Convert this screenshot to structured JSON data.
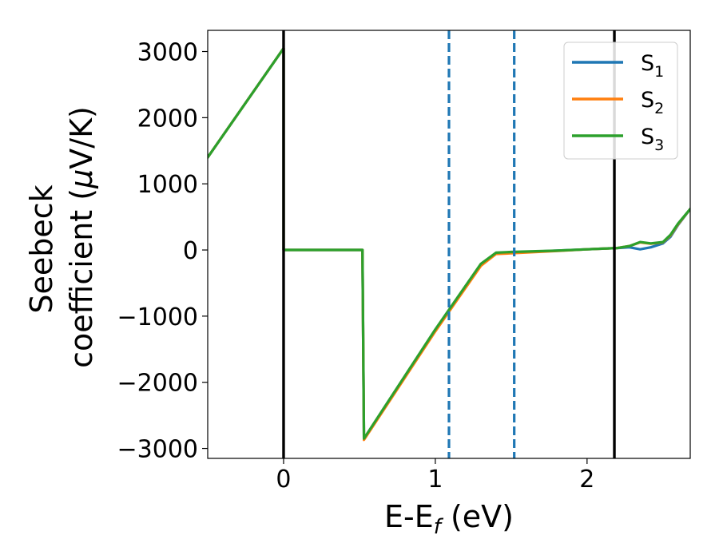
{
  "chart_data": {
    "type": "line",
    "title": "",
    "xlabel": "E-E",
    "xlabel_sub": "f",
    "xlabel_unit": " (eV)",
    "ylabel_line1": "Seebeck",
    "ylabel_line2": "coefficient  (",
    "ylabel_mu": "μ",
    "ylabel_unit": "V/K)",
    "xlim": [
      -0.5,
      2.68
    ],
    "ylim": [
      -3150,
      3320
    ],
    "xticks": [
      0,
      1,
      2
    ],
    "xtick_labels": [
      "0",
      "1",
      "2"
    ],
    "yticks": [
      3000,
      2000,
      1000,
      0,
      -1000,
      -2000,
      -3000
    ],
    "ytick_labels": [
      "3000",
      "2000",
      "1000",
      "0",
      "−1000",
      "−2000",
      "−3000"
    ],
    "grid": false,
    "legend_position": "top-right",
    "legend": [
      {
        "base": "S",
        "sub": "1",
        "color": "#1f77b4"
      },
      {
        "base": "S",
        "sub": "2",
        "color": "#ff7f0e"
      },
      {
        "base": "S",
        "sub": "3",
        "color": "#2ca02c"
      }
    ],
    "vlines": [
      {
        "x": 0.0,
        "style": "solid",
        "color": "#000000"
      },
      {
        "x": 2.18,
        "style": "solid",
        "color": "#000000"
      },
      {
        "x": 1.09,
        "style": "dashed",
        "color": "#1f77b4"
      },
      {
        "x": 1.52,
        "style": "dashed",
        "color": "#1f77b4"
      }
    ],
    "series": [
      {
        "name": "S1",
        "color": "#1f77b4",
        "x": [
          -0.5,
          0.0,
          0.0,
          0.52,
          0.53,
          1.0,
          1.3,
          1.4,
          1.5,
          1.8,
          2.0,
          2.2,
          2.28,
          2.35,
          2.42,
          2.5,
          2.55,
          2.6,
          2.68
        ],
        "y": [
          1400,
          3050,
          0,
          0,
          -2860,
          -1220,
          -230,
          -50,
          -40,
          -10,
          10,
          30,
          40,
          10,
          40,
          100,
          200,
          380,
          620
        ]
      },
      {
        "name": "S2",
        "color": "#ff7f0e",
        "x": [
          -0.5,
          0.0,
          0.0,
          0.52,
          0.53,
          1.0,
          1.3,
          1.4,
          1.5,
          1.8,
          2.0,
          2.2,
          2.28,
          2.35,
          2.42,
          2.5,
          2.55,
          2.6,
          2.68
        ],
        "y": [
          1400,
          3050,
          0,
          0,
          -2870,
          -1230,
          -240,
          -60,
          -50,
          -15,
          10,
          30,
          60,
          115,
          95,
          115,
          220,
          390,
          620
        ]
      },
      {
        "name": "S3",
        "color": "#2ca02c",
        "x": [
          -0.5,
          0.0,
          0.0,
          0.52,
          0.53,
          1.0,
          1.3,
          1.4,
          1.5,
          1.8,
          2.0,
          2.2,
          2.28,
          2.35,
          2.42,
          2.5,
          2.55,
          2.6,
          2.68
        ],
        "y": [
          1400,
          3050,
          0,
          0,
          -2850,
          -1200,
          -210,
          -40,
          -30,
          -10,
          10,
          30,
          60,
          120,
          100,
          120,
          230,
          400,
          620
        ]
      }
    ]
  }
}
